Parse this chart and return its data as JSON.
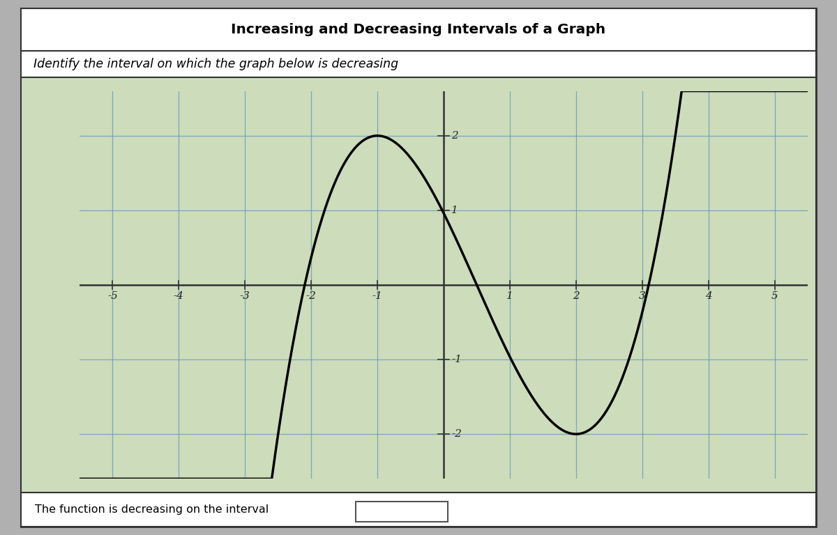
{
  "title": "Increasing and Decreasing Intervals of a Graph",
  "subtitle": "Identify the interval on which the graph below is decreasing",
  "footer_text": "The function is decreasing on the interval",
  "xlim": [
    -5.5,
    5.5
  ],
  "ylim": [
    -2.6,
    2.6
  ],
  "curve_color": "#000000",
  "grid_color": "#6699bb",
  "bg_color": "#cddcba",
  "outer_bg": "#b0b0b0",
  "border_color": "#444444",
  "axes_color": "#333333",
  "tick_label_color": "#222222",
  "figsize": [
    12.0,
    7.68
  ],
  "dpi": 100
}
